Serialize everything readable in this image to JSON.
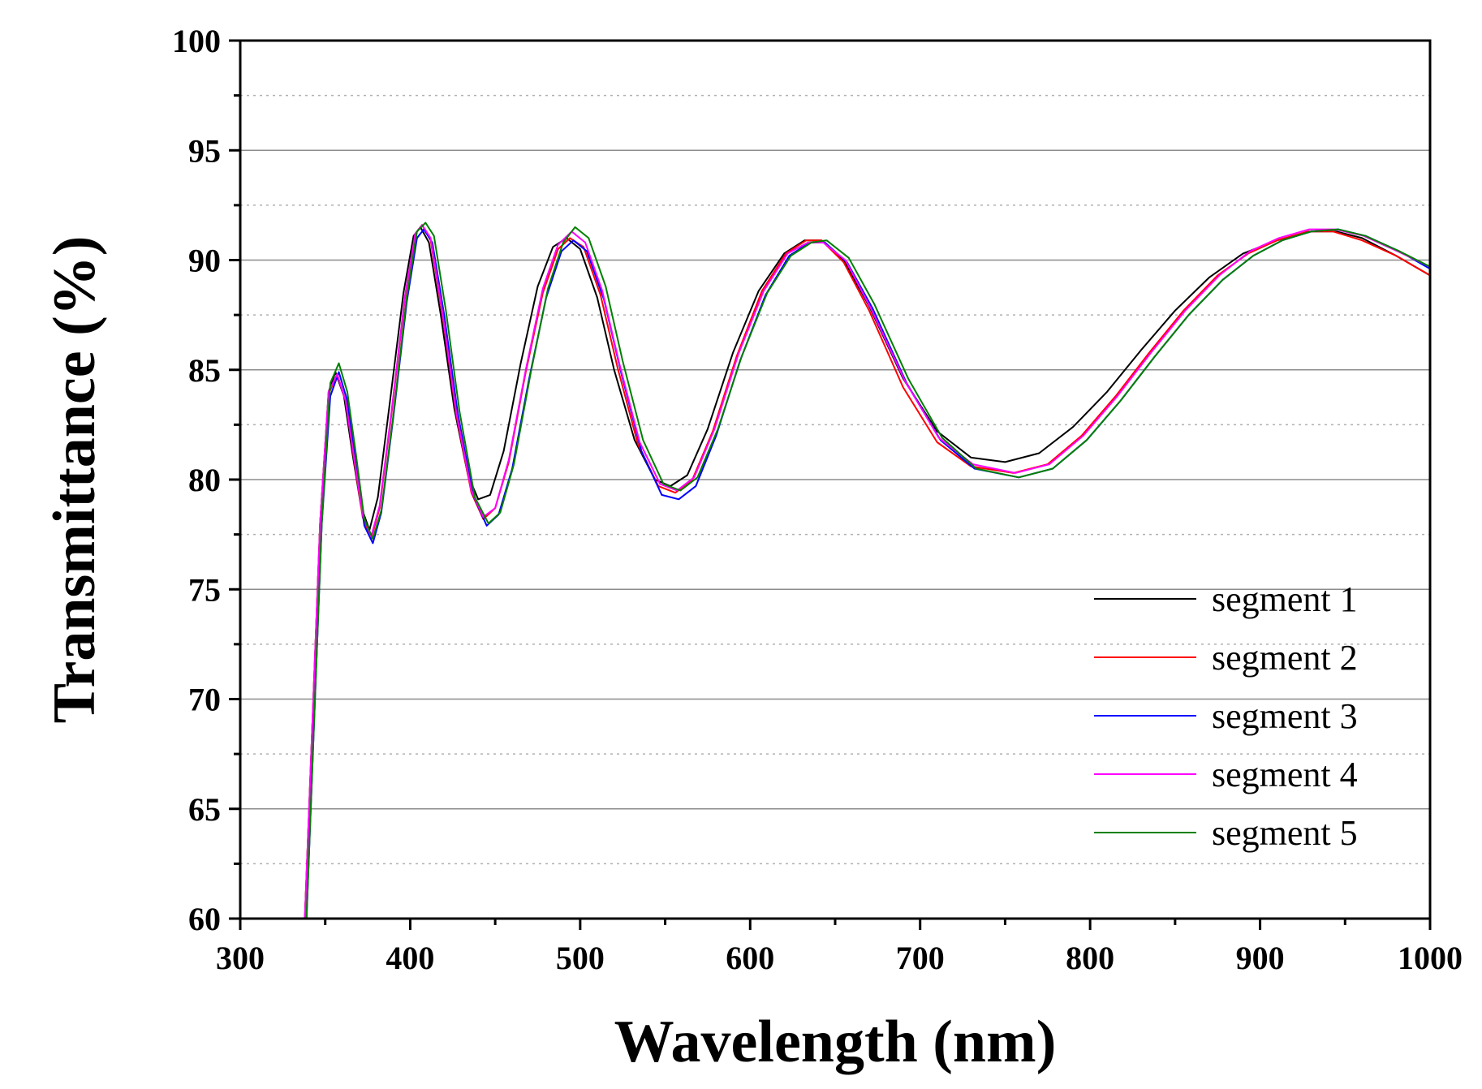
{
  "chart_data": {
    "type": "line",
    "title": "",
    "xlabel": "Wavelength (nm)",
    "ylabel": "Transmittance (%)",
    "xlim": [
      300,
      1000
    ],
    "ylim": [
      60,
      100
    ],
    "xticks": [
      300,
      400,
      500,
      600,
      700,
      800,
      900,
      1000
    ],
    "yticks": [
      60,
      65,
      70,
      75,
      80,
      85,
      90,
      95,
      100
    ],
    "grid": true,
    "legend_position": "bottom-right",
    "series": [
      {
        "name": "segment 1",
        "color": "#000000",
        "points": [
          [
            338,
            60
          ],
          [
            343,
            70
          ],
          [
            347,
            78
          ],
          [
            352,
            84
          ],
          [
            356,
            84.9
          ],
          [
            361,
            83.8
          ],
          [
            366,
            81.2
          ],
          [
            371,
            78.8
          ],
          [
            376,
            77.7
          ],
          [
            381,
            79.2
          ],
          [
            388,
            83.5
          ],
          [
            396,
            88.5
          ],
          [
            402,
            91.1
          ],
          [
            406,
            91.5
          ],
          [
            411,
            90.8
          ],
          [
            418,
            87.5
          ],
          [
            426,
            83.2
          ],
          [
            434,
            80.2
          ],
          [
            440,
            79.1
          ],
          [
            447,
            79.3
          ],
          [
            455,
            81.3
          ],
          [
            465,
            85.3
          ],
          [
            475,
            88.8
          ],
          [
            484,
            90.6
          ],
          [
            492,
            91.0
          ],
          [
            500,
            90.5
          ],
          [
            510,
            88.3
          ],
          [
            520,
            85.0
          ],
          [
            532,
            81.8
          ],
          [
            544,
            80.0
          ],
          [
            553,
            79.7
          ],
          [
            563,
            80.2
          ],
          [
            575,
            82.3
          ],
          [
            590,
            85.8
          ],
          [
            605,
            88.6
          ],
          [
            620,
            90.3
          ],
          [
            632,
            90.9
          ],
          [
            642,
            90.9
          ],
          [
            655,
            90.0
          ],
          [
            670,
            87.9
          ],
          [
            690,
            84.6
          ],
          [
            710,
            82.2
          ],
          [
            730,
            81.0
          ],
          [
            750,
            80.8
          ],
          [
            770,
            81.2
          ],
          [
            790,
            82.4
          ],
          [
            810,
            84.0
          ],
          [
            830,
            85.9
          ],
          [
            850,
            87.7
          ],
          [
            870,
            89.2
          ],
          [
            890,
            90.3
          ],
          [
            910,
            90.9
          ],
          [
            930,
            91.3
          ],
          [
            945,
            91.3
          ],
          [
            960,
            91.0
          ],
          [
            980,
            90.2
          ],
          [
            1000,
            89.3
          ]
        ]
      },
      {
        "name": "segment 2",
        "color": "#ff0000",
        "points": [
          [
            338,
            60
          ],
          [
            343,
            70
          ],
          [
            347,
            78
          ],
          [
            352,
            83.9
          ],
          [
            357,
            84.8
          ],
          [
            362,
            83.6
          ],
          [
            367,
            80.9
          ],
          [
            372,
            78.3
          ],
          [
            377,
            77.3
          ],
          [
            382,
            78.7
          ],
          [
            389,
            83.0
          ],
          [
            397,
            88.3
          ],
          [
            403,
            91.2
          ],
          [
            407,
            91.6
          ],
          [
            412,
            90.9
          ],
          [
            419,
            87.5
          ],
          [
            427,
            83.0
          ],
          [
            436,
            79.4
          ],
          [
            443,
            78.2
          ],
          [
            450,
            78.7
          ],
          [
            458,
            80.8
          ],
          [
            468,
            84.9
          ],
          [
            478,
            88.5
          ],
          [
            487,
            90.5
          ],
          [
            494,
            91.0
          ],
          [
            502,
            90.6
          ],
          [
            512,
            88.4
          ],
          [
            522,
            85.1
          ],
          [
            534,
            81.6
          ],
          [
            546,
            79.7
          ],
          [
            556,
            79.4
          ],
          [
            566,
            80.0
          ],
          [
            578,
            82.2
          ],
          [
            592,
            85.6
          ],
          [
            607,
            88.6
          ],
          [
            621,
            90.3
          ],
          [
            633,
            90.9
          ],
          [
            642,
            90.9
          ],
          [
            655,
            89.9
          ],
          [
            670,
            87.7
          ],
          [
            690,
            84.2
          ],
          [
            710,
            81.7
          ],
          [
            730,
            80.6
          ],
          [
            755,
            80.3
          ],
          [
            775,
            80.7
          ],
          [
            795,
            82.0
          ],
          [
            815,
            83.8
          ],
          [
            835,
            85.8
          ],
          [
            855,
            87.7
          ],
          [
            875,
            89.3
          ],
          [
            893,
            90.3
          ],
          [
            910,
            90.9
          ],
          [
            928,
            91.3
          ],
          [
            943,
            91.3
          ],
          [
            960,
            90.9
          ],
          [
            980,
            90.2
          ],
          [
            1000,
            89.3
          ]
        ]
      },
      {
        "name": "segment 3",
        "color": "#0000ff",
        "points": [
          [
            339,
            60
          ],
          [
            344,
            70
          ],
          [
            348,
            78
          ],
          [
            353,
            83.8
          ],
          [
            358,
            84.9
          ],
          [
            363,
            83.6
          ],
          [
            368,
            80.7
          ],
          [
            373,
            77.9
          ],
          [
            378,
            77.1
          ],
          [
            383,
            78.5
          ],
          [
            390,
            82.8
          ],
          [
            398,
            88.1
          ],
          [
            404,
            91.0
          ],
          [
            408,
            91.4
          ],
          [
            413,
            90.8
          ],
          [
            420,
            87.5
          ],
          [
            428,
            83.0
          ],
          [
            437,
            79.3
          ],
          [
            445,
            77.9
          ],
          [
            452,
            78.4
          ],
          [
            460,
            80.5
          ],
          [
            470,
            84.6
          ],
          [
            480,
            88.3
          ],
          [
            489,
            90.4
          ],
          [
            496,
            90.9
          ],
          [
            504,
            90.4
          ],
          [
            514,
            88.2
          ],
          [
            524,
            84.9
          ],
          [
            536,
            81.3
          ],
          [
            548,
            79.3
          ],
          [
            558,
            79.1
          ],
          [
            568,
            79.7
          ],
          [
            580,
            82.0
          ],
          [
            594,
            85.4
          ],
          [
            609,
            88.4
          ],
          [
            623,
            90.2
          ],
          [
            635,
            90.8
          ],
          [
            644,
            90.8
          ],
          [
            657,
            89.9
          ],
          [
            672,
            87.8
          ],
          [
            692,
            84.4
          ],
          [
            712,
            81.8
          ],
          [
            732,
            80.5
          ],
          [
            758,
            80.1
          ],
          [
            778,
            80.5
          ],
          [
            798,
            81.8
          ],
          [
            818,
            83.6
          ],
          [
            838,
            85.6
          ],
          [
            858,
            87.5
          ],
          [
            878,
            89.1
          ],
          [
            896,
            90.2
          ],
          [
            913,
            90.9
          ],
          [
            930,
            91.3
          ],
          [
            946,
            91.4
          ],
          [
            962,
            91.1
          ],
          [
            982,
            90.4
          ],
          [
            1000,
            89.6
          ]
        ]
      },
      {
        "name": "segment 4",
        "color": "#ff00ff",
        "points": [
          [
            338,
            60
          ],
          [
            343,
            70
          ],
          [
            347,
            78
          ],
          [
            352,
            84.0
          ],
          [
            357,
            84.8
          ],
          [
            362,
            83.6
          ],
          [
            367,
            81.0
          ],
          [
            372,
            78.4
          ],
          [
            377,
            77.4
          ],
          [
            382,
            78.8
          ],
          [
            389,
            83.1
          ],
          [
            397,
            88.4
          ],
          [
            403,
            91.2
          ],
          [
            407,
            91.6
          ],
          [
            412,
            91.0
          ],
          [
            419,
            87.6
          ],
          [
            427,
            83.1
          ],
          [
            436,
            79.5
          ],
          [
            443,
            78.3
          ],
          [
            450,
            78.7
          ],
          [
            458,
            80.9
          ],
          [
            468,
            85.0
          ],
          [
            478,
            88.7
          ],
          [
            487,
            90.7
          ],
          [
            495,
            91.3
          ],
          [
            503,
            90.8
          ],
          [
            513,
            88.6
          ],
          [
            523,
            85.3
          ],
          [
            535,
            81.7
          ],
          [
            547,
            79.8
          ],
          [
            557,
            79.5
          ],
          [
            567,
            80.1
          ],
          [
            579,
            82.3
          ],
          [
            593,
            85.7
          ],
          [
            608,
            88.6
          ],
          [
            622,
            90.3
          ],
          [
            634,
            90.8
          ],
          [
            643,
            90.8
          ],
          [
            656,
            90.0
          ],
          [
            671,
            87.8
          ],
          [
            691,
            84.5
          ],
          [
            711,
            81.9
          ],
          [
            731,
            80.7
          ],
          [
            756,
            80.3
          ],
          [
            776,
            80.7
          ],
          [
            796,
            82.0
          ],
          [
            816,
            83.8
          ],
          [
            836,
            85.8
          ],
          [
            856,
            87.7
          ],
          [
            876,
            89.3
          ],
          [
            894,
            90.4
          ],
          [
            911,
            91.0
          ],
          [
            929,
            91.4
          ],
          [
            944,
            91.4
          ],
          [
            961,
            91.1
          ],
          [
            981,
            90.4
          ],
          [
            1000,
            89.7
          ]
        ]
      },
      {
        "name": "segment 5",
        "color": "#008000",
        "points": [
          [
            339,
            60
          ],
          [
            344,
            70
          ],
          [
            348,
            78
          ],
          [
            353,
            84.4
          ],
          [
            358,
            85.3
          ],
          [
            363,
            84.0
          ],
          [
            368,
            81.2
          ],
          [
            373,
            78.2
          ],
          [
            378,
            77.3
          ],
          [
            383,
            78.6
          ],
          [
            390,
            82.9
          ],
          [
            398,
            88.3
          ],
          [
            404,
            91.3
          ],
          [
            409,
            91.7
          ],
          [
            414,
            91.1
          ],
          [
            421,
            87.7
          ],
          [
            429,
            83.1
          ],
          [
            438,
            79.2
          ],
          [
            446,
            78.0
          ],
          [
            453,
            78.5
          ],
          [
            461,
            80.7
          ],
          [
            471,
            84.9
          ],
          [
            481,
            88.7
          ],
          [
            490,
            90.8
          ],
          [
            497,
            91.5
          ],
          [
            505,
            91.0
          ],
          [
            515,
            88.8
          ],
          [
            525,
            85.4
          ],
          [
            537,
            81.8
          ],
          [
            549,
            79.8
          ],
          [
            559,
            79.5
          ],
          [
            569,
            80.1
          ],
          [
            581,
            82.3
          ],
          [
            595,
            85.6
          ],
          [
            610,
            88.5
          ],
          [
            624,
            90.2
          ],
          [
            636,
            90.8
          ],
          [
            645,
            90.9
          ],
          [
            658,
            90.1
          ],
          [
            673,
            88.0
          ],
          [
            693,
            84.6
          ],
          [
            713,
            81.9
          ],
          [
            733,
            80.5
          ],
          [
            758,
            80.1
          ],
          [
            778,
            80.5
          ],
          [
            798,
            81.8
          ],
          [
            818,
            83.6
          ],
          [
            838,
            85.6
          ],
          [
            858,
            87.5
          ],
          [
            878,
            89.1
          ],
          [
            896,
            90.2
          ],
          [
            913,
            90.9
          ],
          [
            930,
            91.3
          ],
          [
            946,
            91.4
          ],
          [
            962,
            91.1
          ],
          [
            982,
            90.4
          ],
          [
            1000,
            89.7
          ]
        ]
      }
    ]
  }
}
